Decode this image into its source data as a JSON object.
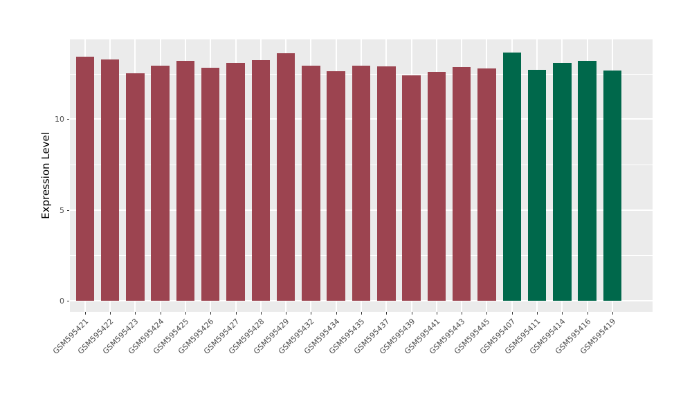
{
  "chart_data": {
    "type": "bar",
    "title": "",
    "xlabel": "",
    "ylabel": "Expression Level",
    "categories": [
      "GSM595421",
      "GSM595422",
      "GSM595423",
      "GSM595424",
      "GSM595425",
      "GSM595426",
      "GSM595427",
      "GSM595428",
      "GSM595429",
      "GSM595432",
      "GSM595434",
      "GSM595435",
      "GSM595437",
      "GSM595439",
      "GSM595441",
      "GSM595443",
      "GSM595445",
      "GSM595407",
      "GSM595411",
      "GSM595414",
      "GSM595416",
      "GSM595419"
    ],
    "values": [
      13.45,
      13.3,
      12.53,
      12.95,
      13.22,
      12.82,
      13.12,
      13.25,
      13.62,
      12.97,
      12.66,
      12.97,
      12.91,
      12.42,
      12.59,
      12.87,
      12.8,
      13.68,
      12.72,
      13.12,
      13.22,
      12.68
    ],
    "bar_groups": [
      "g1",
      "g1",
      "g1",
      "g1",
      "g1",
      "g1",
      "g1",
      "g1",
      "g1",
      "g1",
      "g1",
      "g1",
      "g1",
      "g1",
      "g1",
      "g1",
      "g1",
      "g2",
      "g2",
      "g2",
      "g2",
      "g2"
    ],
    "group_colors": {
      "g1": "#9C4450",
      "g2": "#00684B"
    },
    "yticks": [
      0,
      5,
      10
    ],
    "yticks_minor": [
      2.5,
      7.5,
      12.5
    ],
    "ylim": [
      -0.62,
      14.4
    ],
    "legend": "none",
    "grid": "on",
    "panel_background": "#EBEBEB",
    "gridline_color": "#FFFFFF",
    "axis_text_color": "#4D4D4D"
  }
}
